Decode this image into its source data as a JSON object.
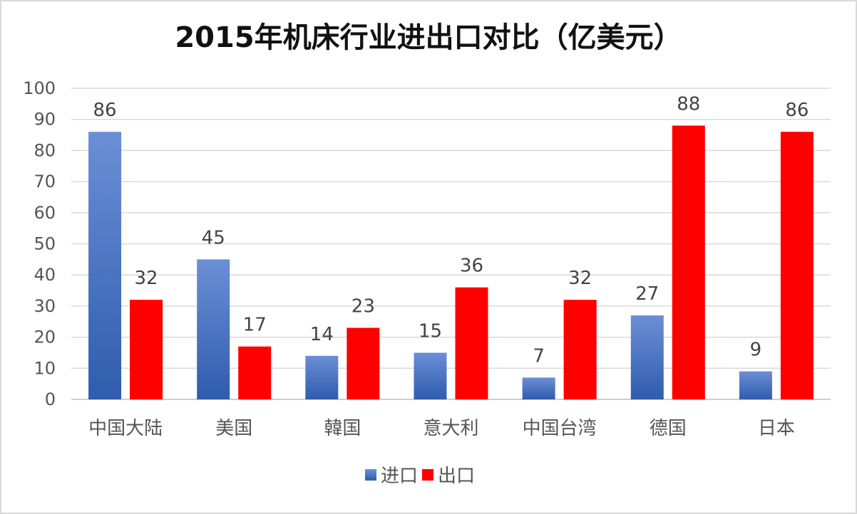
{
  "chart_data": {
    "type": "bar",
    "title": "2015年机床行业进出口对比（亿美元）",
    "xlabel": "",
    "ylabel": "",
    "categories": [
      "中国大陆",
      "美国",
      "韓国",
      "意大利",
      "中国台湾",
      "德国",
      "日本"
    ],
    "series": [
      {
        "name": "进口",
        "values": [
          86,
          45,
          14,
          15,
          7,
          27,
          9
        ],
        "color": "#4472c4"
      },
      {
        "name": "出口",
        "values": [
          32,
          17,
          23,
          36,
          32,
          88,
          86
        ],
        "color": "#ff0000"
      }
    ],
    "ylim": [
      0,
      100
    ],
    "yticks": [
      0,
      10,
      20,
      30,
      40,
      50,
      60,
      70,
      80,
      90,
      100
    ],
    "grid": true,
    "data_labels": true,
    "legend_position": "bottom"
  }
}
